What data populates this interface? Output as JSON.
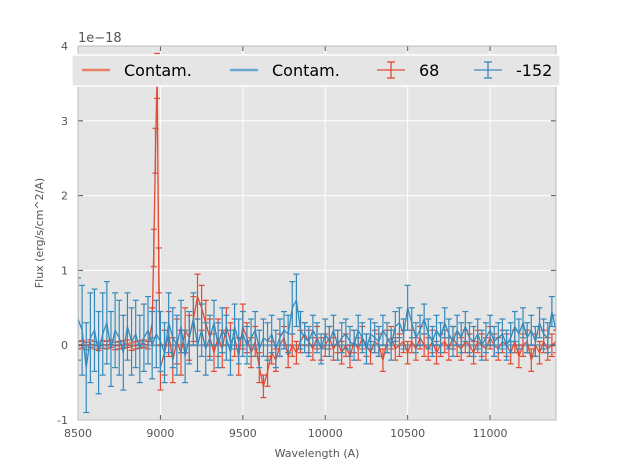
{
  "chart_data": {
    "type": "line",
    "title": "",
    "xlabel": "Wavelength (A)",
    "ylabel": "Flux (erg/s/cm^2/A)",
    "y_offset_label": "1e−18",
    "xlim": [
      8500,
      11400
    ],
    "ylim": [
      -1,
      4
    ],
    "xticks": [
      8500,
      9000,
      9500,
      10000,
      10500,
      11000
    ],
    "yticks": [
      -1,
      0,
      1,
      2,
      3,
      4
    ],
    "y_scale": 1e-18,
    "grid": true,
    "legend_position": "top",
    "legend": [
      {
        "label": "Contam.",
        "kind": "line",
        "color": "#e8806a"
      },
      {
        "label": "Contam.",
        "kind": "line",
        "color": "#6aa8cf"
      },
      {
        "label": "68",
        "kind": "errorbar",
        "color": "#e24a33"
      },
      {
        "label": "-152",
        "kind": "errorbar",
        "color": "#348abd"
      }
    ],
    "series": [
      {
        "name": "Contam.",
        "color": "#e8806a",
        "kind": "line",
        "x": [
          8500,
          11400
        ],
        "y": [
          0.0,
          0.0
        ]
      },
      {
        "name": "Contam.",
        "color": "#6aa8cf",
        "kind": "line",
        "x": [
          8500,
          11400
        ],
        "y": [
          0.0,
          0.0
        ]
      },
      {
        "name": "68",
        "color": "#e24a33",
        "kind": "errorbar",
        "x": [
          8500,
          8525,
          8550,
          8575,
          8600,
          8625,
          8650,
          8675,
          8700,
          8725,
          8750,
          8775,
          8800,
          8825,
          8850,
          8875,
          8900,
          8925,
          8950,
          8960,
          8970,
          8980,
          8990,
          9000,
          9025,
          9050,
          9075,
          9100,
          9125,
          9150,
          9175,
          9200,
          9225,
          9250,
          9275,
          9300,
          9325,
          9350,
          9375,
          9400,
          9425,
          9450,
          9475,
          9500,
          9525,
          9550,
          9575,
          9600,
          9625,
          9650,
          9675,
          9700,
          9725,
          9750,
          9775,
          9800,
          9825,
          9850,
          9875,
          9900,
          9925,
          9950,
          9975,
          10000,
          10025,
          10050,
          10075,
          10100,
          10125,
          10150,
          10175,
          10200,
          10225,
          10250,
          10275,
          10300,
          10325,
          10350,
          10375,
          10400,
          10425,
          10450,
          10475,
          10500,
          10525,
          10550,
          10575,
          10600,
          10625,
          10650,
          10675,
          10700,
          10725,
          10750,
          10775,
          10800,
          10825,
          10850,
          10875,
          10900,
          10925,
          10950,
          10975,
          11000,
          11025,
          11050,
          11075,
          11100,
          11125,
          11150,
          11175,
          11200,
          11225,
          11250,
          11275,
          11300,
          11325,
          11350,
          11375,
          11400
        ],
        "y": [
          0.0,
          0.01,
          -0.01,
          0.02,
          0.0,
          -0.02,
          0.01,
          0.0,
          0.02,
          -0.01,
          0.0,
          0.01,
          0.02,
          -0.02,
          0.0,
          0.01,
          0.02,
          0.0,
          0.3,
          1.3,
          2.6,
          3.6,
          1.0,
          -0.3,
          -0.1,
          0.15,
          -0.2,
          0.05,
          -0.1,
          0.2,
          0.1,
          0.35,
          0.65,
          0.5,
          0.3,
          0.1,
          -0.1,
          0.1,
          -0.05,
          0.25,
          0.05,
          0.1,
          -0.15,
          0.25,
          0.1,
          -0.1,
          0.05,
          -0.3,
          -0.55,
          -0.35,
          -0.1,
          -0.2,
          0.0,
          0.1,
          -0.15,
          0.0,
          -0.1,
          0.05,
          0.15,
          0.05,
          -0.05,
          0.1,
          -0.05,
          0.0,
          0.1,
          -0.05,
          0.05,
          -0.1,
          0.0,
          -0.15,
          0.05,
          -0.05,
          0.1,
          0.0,
          -0.1,
          0.05,
          0.0,
          -0.2,
          0.05,
          0.1,
          -0.05,
          0.0,
          0.05,
          -0.1,
          0.05,
          -0.05,
          0.1,
          0.0,
          -0.05,
          0.05,
          -0.1,
          0.0,
          0.05,
          -0.05,
          0.1,
          0.0,
          -0.05,
          0.05,
          0.0,
          -0.1,
          0.05,
          0.0,
          -0.05,
          0.1,
          0.0,
          -0.05,
          0.05,
          0.0,
          -0.1,
          0.05,
          -0.15,
          0.0,
          0.05,
          -0.2,
          0.0,
          -0.1,
          0.05,
          -0.05,
          0.0,
          0.05
        ],
        "err": [
          0.05,
          0.05,
          0.05,
          0.05,
          0.05,
          0.05,
          0.05,
          0.05,
          0.05,
          0.05,
          0.05,
          0.05,
          0.05,
          0.05,
          0.05,
          0.05,
          0.05,
          0.05,
          0.2,
          0.25,
          0.3,
          0.3,
          0.3,
          0.3,
          0.3,
          0.3,
          0.3,
          0.3,
          0.3,
          0.3,
          0.3,
          0.3,
          0.3,
          0.3,
          0.3,
          0.25,
          0.25,
          0.25,
          0.25,
          0.25,
          0.25,
          0.25,
          0.25,
          0.3,
          0.2,
          0.2,
          0.2,
          0.2,
          0.15,
          0.2,
          0.15,
          0.15,
          0.15,
          0.15,
          0.15,
          0.15,
          0.15,
          0.15,
          0.15,
          0.15,
          0.15,
          0.15,
          0.15,
          0.15,
          0.15,
          0.15,
          0.15,
          0.15,
          0.15,
          0.15,
          0.15,
          0.15,
          0.15,
          0.15,
          0.15,
          0.15,
          0.15,
          0.15,
          0.15,
          0.15,
          0.15,
          0.15,
          0.15,
          0.15,
          0.15,
          0.15,
          0.15,
          0.15,
          0.15,
          0.15,
          0.15,
          0.15,
          0.15,
          0.15,
          0.15,
          0.15,
          0.15,
          0.15,
          0.15,
          0.15,
          0.15,
          0.15,
          0.15,
          0.15,
          0.15,
          0.15,
          0.15,
          0.15,
          0.15,
          0.15,
          0.15,
          0.15,
          0.15,
          0.15,
          0.15,
          0.15,
          0.15,
          0.15,
          0.15,
          0.15
        ]
      },
      {
        "name": "-152",
        "color": "#348abd",
        "kind": "errorbar",
        "x": [
          8500,
          8525,
          8550,
          8575,
          8600,
          8625,
          8650,
          8675,
          8700,
          8725,
          8750,
          8775,
          8800,
          8825,
          8850,
          8875,
          8900,
          8925,
          8950,
          8975,
          9000,
          9025,
          9050,
          9075,
          9100,
          9125,
          9150,
          9175,
          9200,
          9225,
          9250,
          9275,
          9300,
          9325,
          9350,
          9375,
          9400,
          9425,
          9450,
          9475,
          9500,
          9525,
          9550,
          9575,
          9600,
          9625,
          9650,
          9675,
          9700,
          9725,
          9750,
          9775,
          9800,
          9825,
          9850,
          9875,
          9900,
          9925,
          9950,
          9975,
          10000,
          10025,
          10050,
          10075,
          10100,
          10125,
          10150,
          10175,
          10200,
          10225,
          10250,
          10275,
          10300,
          10325,
          10350,
          10375,
          10400,
          10425,
          10450,
          10475,
          10500,
          10525,
          10550,
          10575,
          10600,
          10625,
          10650,
          10675,
          10700,
          10725,
          10750,
          10775,
          10800,
          10825,
          10850,
          10875,
          10900,
          10925,
          10950,
          10975,
          11000,
          11025,
          11050,
          11075,
          11100,
          11125,
          11150,
          11175,
          11200,
          11225,
          11250,
          11275,
          11300,
          11325,
          11350,
          11375,
          11400
        ],
        "y": [
          0.35,
          0.2,
          -0.3,
          0.1,
          0.2,
          -0.1,
          0.15,
          0.3,
          -0.05,
          0.2,
          0.1,
          -0.1,
          0.25,
          0.05,
          0.15,
          -0.05,
          0.1,
          0.2,
          0.0,
          0.15,
          0.05,
          -0.1,
          0.3,
          0.1,
          0.0,
          0.25,
          -0.15,
          0.1,
          0.35,
          0.0,
          0.2,
          -0.05,
          0.1,
          0.3,
          0.0,
          0.2,
          0.1,
          -0.1,
          0.25,
          0.05,
          0.15,
          0.0,
          0.1,
          0.2,
          -0.05,
          0.1,
          0.05,
          0.15,
          -0.05,
          0.1,
          0.2,
          0.15,
          0.5,
          0.6,
          0.2,
          0.1,
          0.05,
          0.2,
          0.1,
          -0.05,
          0.15,
          0.05,
          0.2,
          0.0,
          0.1,
          0.15,
          0.05,
          0.0,
          0.2,
          0.1,
          -0.05,
          0.15,
          0.1,
          0.05,
          0.2,
          0.1,
          0.0,
          0.25,
          0.3,
          0.15,
          0.5,
          0.3,
          0.1,
          0.2,
          0.35,
          0.15,
          0.05,
          0.2,
          0.1,
          0.3,
          0.15,
          0.05,
          0.2,
          0.1,
          0.25,
          0.1,
          0.05,
          0.15,
          0.0,
          0.1,
          0.2,
          0.05,
          0.1,
          0.15,
          0.0,
          0.1,
          0.25,
          0.15,
          0.3,
          0.1,
          0.2,
          0.05,
          0.3,
          0.15,
          0.1,
          0.45,
          0.2
        ],
        "err": [
          0.55,
          0.6,
          0.6,
          0.6,
          0.55,
          0.55,
          0.55,
          0.55,
          0.5,
          0.5,
          0.5,
          0.5,
          0.45,
          0.45,
          0.45,
          0.45,
          0.45,
          0.45,
          0.45,
          0.45,
          0.4,
          0.4,
          0.4,
          0.4,
          0.4,
          0.35,
          0.35,
          0.35,
          0.35,
          0.35,
          0.35,
          0.35,
          0.3,
          0.3,
          0.3,
          0.3,
          0.3,
          0.3,
          0.3,
          0.3,
          0.3,
          0.25,
          0.25,
          0.25,
          0.25,
          0.25,
          0.25,
          0.25,
          0.25,
          0.25,
          0.25,
          0.25,
          0.35,
          0.35,
          0.25,
          0.2,
          0.2,
          0.2,
          0.2,
          0.2,
          0.2,
          0.2,
          0.2,
          0.2,
          0.2,
          0.2,
          0.2,
          0.2,
          0.2,
          0.2,
          0.2,
          0.2,
          0.2,
          0.2,
          0.2,
          0.2,
          0.2,
          0.2,
          0.2,
          0.2,
          0.3,
          0.2,
          0.2,
          0.2,
          0.2,
          0.2,
          0.2,
          0.2,
          0.2,
          0.2,
          0.2,
          0.2,
          0.2,
          0.2,
          0.2,
          0.2,
          0.2,
          0.2,
          0.2,
          0.2,
          0.2,
          0.2,
          0.2,
          0.2,
          0.2,
          0.2,
          0.2,
          0.2,
          0.2,
          0.2,
          0.2,
          0.2,
          0.2,
          0.2,
          0.2,
          0.2,
          0.2
        ]
      }
    ]
  }
}
